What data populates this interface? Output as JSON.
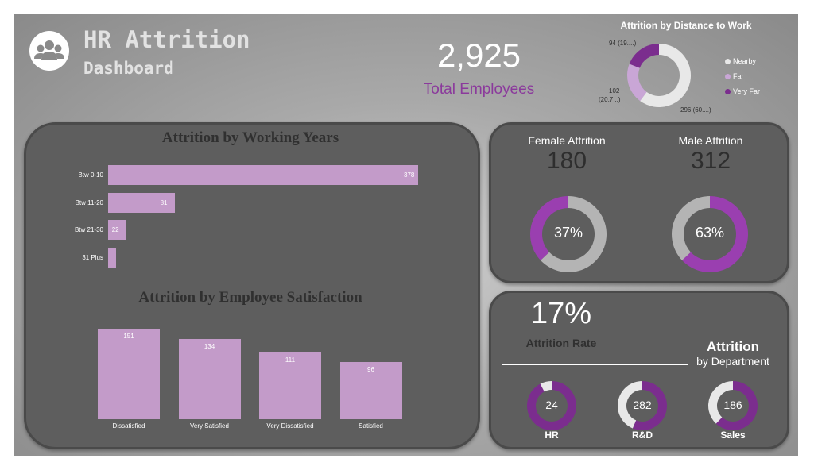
{
  "header": {
    "title": "HR Attrition",
    "subtitle": "Dashboard",
    "icon": "people-group-icon"
  },
  "kpi": {
    "total_employees": "2,925",
    "total_employees_label": "Total Employees"
  },
  "distance": {
    "title": "Attrition by Distance to Work",
    "label_nearby": "296 (60....)",
    "label_far_line1": "102",
    "label_far_line2": "(20.7...)",
    "label_veryfar": "94 (19....)",
    "legend": [
      "Nearby",
      "Far",
      "Very Far"
    ]
  },
  "gender": {
    "female_label": "Female Attrition",
    "female_value": "180",
    "female_pct": "37%",
    "male_label": "Male Attrition",
    "male_value": "312",
    "male_pct": "63%"
  },
  "rate": {
    "value": "17%",
    "label": "Attrition Rate"
  },
  "department": {
    "title": "Attrition",
    "subtitle": "by Department",
    "items": [
      {
        "name": "HR",
        "value": "24"
      },
      {
        "name": "R&D",
        "value": "282"
      },
      {
        "name": "Sales",
        "value": "186"
      }
    ]
  },
  "colors": {
    "panel": "#5e5e5e",
    "bar": "#c39bc9",
    "purple_dark": "#7b2d8e",
    "purple_mid": "#9a3fb0",
    "lavender": "#c9a6d6",
    "ring_light": "#e8e8e8",
    "ring_gray": "#b4b4b4"
  },
  "chart_data": [
    {
      "type": "bar",
      "orientation": "horizontal",
      "title": "Attrition by Working Years",
      "categories": [
        "Btw 0-10",
        "Btw 11-20",
        "Btw 21-30",
        "31 Plus"
      ],
      "values": [
        378,
        81,
        22,
        10
      ],
      "data_labels": [
        "378",
        "81",
        "22",
        ""
      ]
    },
    {
      "type": "bar",
      "orientation": "vertical",
      "title": "Attrition by Employee Satisfaction",
      "categories": [
        "Dissatisfied",
        "Very Satisfied",
        "Very Dissatisfied",
        "Satisfied"
      ],
      "values": [
        151,
        134,
        111,
        96
      ],
      "data_labels": [
        "151",
        "134",
        "111",
        "96"
      ]
    },
    {
      "type": "pie",
      "title": "Attrition by Distance to Work",
      "categories": [
        "Nearby",
        "Far",
        "Very Far"
      ],
      "values": [
        296,
        102,
        94
      ]
    },
    {
      "type": "pie",
      "title": "Female Attrition",
      "values": [
        37,
        63
      ]
    },
    {
      "type": "pie",
      "title": "Male Attrition",
      "values": [
        63,
        37
      ]
    },
    {
      "type": "pie",
      "title": "HR",
      "values": [
        24,
        2
      ]
    },
    {
      "type": "pie",
      "title": "R&D",
      "values": [
        282,
        218
      ]
    },
    {
      "type": "pie",
      "title": "Sales",
      "values": [
        186,
        114
      ]
    }
  ]
}
